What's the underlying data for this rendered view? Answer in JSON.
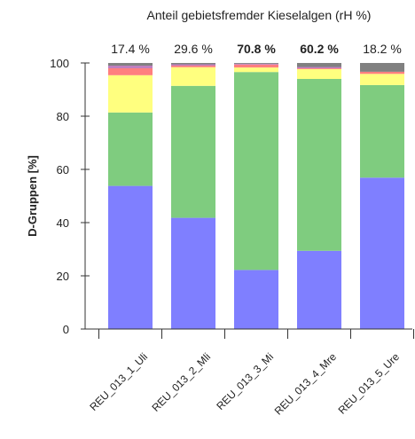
{
  "chart_data": {
    "type": "bar",
    "stacked": true,
    "title": "Anteil gebietsfremder Kieselalgen (rH %)",
    "ylabel": "D-Gruppen [%]",
    "xlabel": "",
    "ylim": [
      0,
      100
    ],
    "yticks": [
      "0",
      "20",
      "40",
      "60",
      "80",
      "100"
    ],
    "categories": [
      "REU_013_1_Uli",
      "REU_013_2_Mli",
      "REU_013_3_Mi",
      "REU_013_4_Mre",
      "REU_013_5_Ure"
    ],
    "top_labels": [
      {
        "text": "17.4 %",
        "bold": false
      },
      {
        "text": "29.6 %",
        "bold": false
      },
      {
        "text": "70.8 %",
        "bold": true
      },
      {
        "text": "60.2 %",
        "bold": true
      },
      {
        "text": "18.2 %",
        "bold": false
      }
    ],
    "series": [
      {
        "color": "#7f7fff",
        "values": [
          53.8,
          41.8,
          22.2,
          29.4,
          56.9
        ]
      },
      {
        "color": "#7fcc7f",
        "values": [
          27.6,
          49.6,
          74.4,
          64.6,
          34.8
        ]
      },
      {
        "color": "#ffff7f",
        "values": [
          14.0,
          7.0,
          1.7,
          3.7,
          4.2
        ]
      },
      {
        "color": "#ff7f7f",
        "values": [
          2.6,
          0.6,
          1.1,
          0.3,
          0.8
        ]
      },
      {
        "color": "#bf7fbf",
        "values": [
          1.0,
          0.5,
          0.3,
          0.5,
          0.0
        ]
      },
      {
        "color": "#808080",
        "values": [
          1.0,
          0.5,
          0.3,
          1.5,
          3.3
        ]
      }
    ]
  }
}
